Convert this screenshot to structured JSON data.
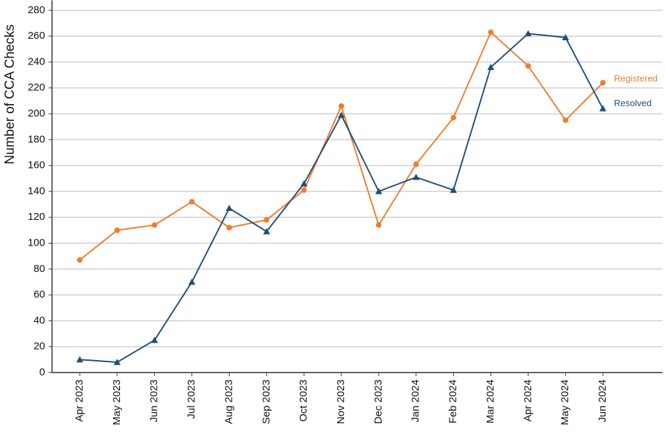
{
  "chart_data": {
    "type": "line",
    "y_label": "Number of CCA Checks",
    "categories": [
      "Apr 2023",
      "May 2023",
      "Jun 2023",
      "Jul 2023",
      "Aug 2023",
      "Sep 2023",
      "Oct 2023",
      "Nov 2023",
      "Dec 2023",
      "Jan 2024",
      "Feb 2024",
      "Mar 2024",
      "Apr 2024",
      "May 2024",
      "Jun 2024"
    ],
    "series": [
      {
        "name": "Registered",
        "color": "#ef7d2d",
        "marker": "circle",
        "values": [
          87,
          110,
          114,
          132,
          112,
          118,
          141,
          206,
          114,
          161,
          197,
          263,
          237,
          195,
          224
        ]
      },
      {
        "name": "Resolved",
        "color": "#1f4e79",
        "marker": "triangle",
        "values": [
          10,
          8,
          25,
          70,
          127,
          109,
          146,
          199,
          140,
          151,
          141,
          236,
          262,
          259,
          204
        ]
      }
    ],
    "ylim": [
      0,
      285
    ],
    "yticks": [
      0,
      20,
      40,
      60,
      80,
      100,
      120,
      140,
      160,
      180,
      200,
      220,
      240,
      260,
      280
    ],
    "grid": true
  }
}
